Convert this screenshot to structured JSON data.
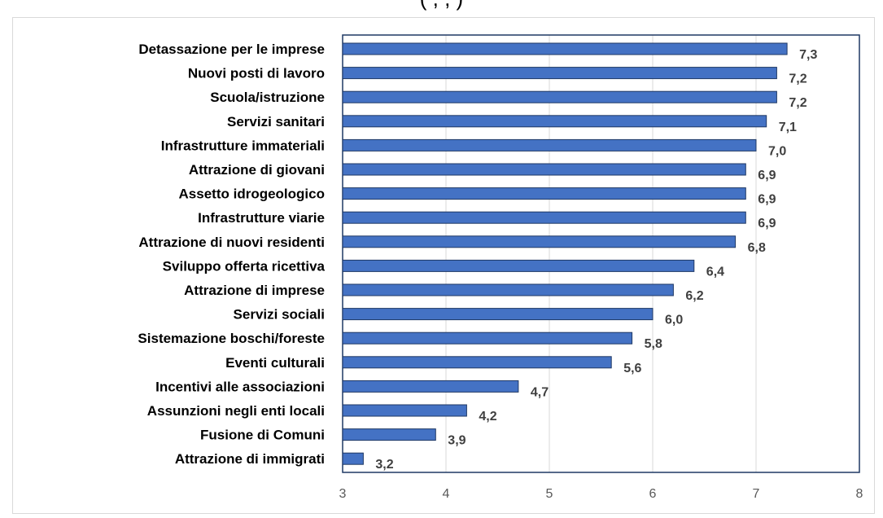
{
  "header": {
    "title_fragment": "( , , )"
  },
  "chart_data": {
    "type": "bar",
    "orientation": "horizontal",
    "categories": [
      "Detassazione per le imprese",
      "Nuovi posti di lavoro",
      "Scuola/istruzione",
      "Servizi sanitari",
      "Infrastrutture immateriali",
      "Attrazione di giovani",
      "Assetto idrogeologico",
      "Infrastrutture viarie",
      "Attrazione di nuovi residenti",
      "Sviluppo offerta ricettiva",
      "Attrazione di imprese",
      "Servizi sociali",
      "Sistemazione boschi/foreste",
      "Eventi culturali",
      "Incentivi  alle  associazioni",
      "Assunzioni negli enti locali",
      "Fusione di Comuni",
      "Attrazione di immigrati"
    ],
    "values": [
      7.3,
      7.2,
      7.2,
      7.1,
      7.0,
      6.9,
      6.9,
      6.9,
      6.8,
      6.4,
      6.2,
      6.0,
      5.8,
      5.6,
      4.7,
      4.2,
      3.9,
      3.2
    ],
    "value_labels": [
      "7,3",
      "7,2",
      "7,2",
      "7,1",
      "7,0",
      "6,9",
      "6,9",
      "6,9",
      "6,8",
      "6,4",
      "6,2",
      "6,0",
      "5,8",
      "5,6",
      "4,7",
      "4,2",
      "3,9",
      "3,2"
    ],
    "xlim": [
      3,
      8
    ],
    "xticks": [
      3,
      4,
      5,
      6,
      7,
      8
    ],
    "xtick_labels": [
      "3",
      "4",
      "5",
      "6",
      "7",
      "8"
    ],
    "grid": "vertical",
    "colors": {
      "bar_fill": "#4472c4",
      "bar_stroke": "#1f3864",
      "plot_border": "#1f3864",
      "grid": "#d9d9d9"
    }
  }
}
